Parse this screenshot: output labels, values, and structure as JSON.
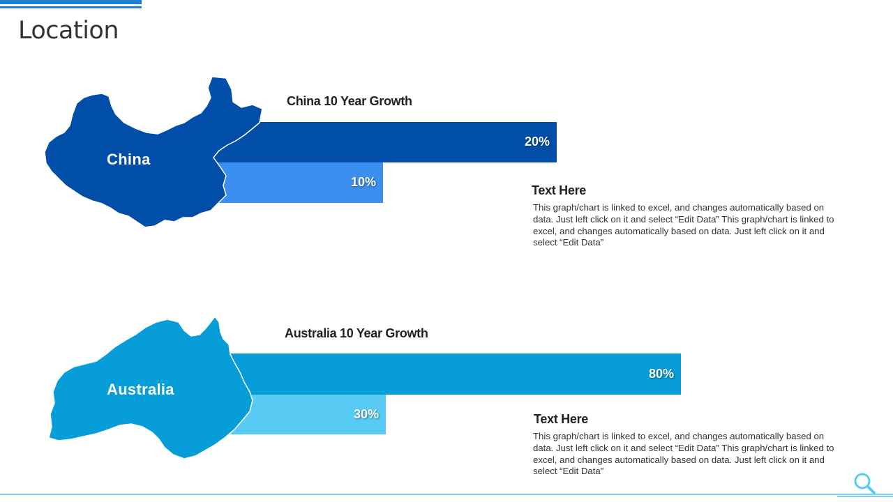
{
  "page": {
    "title": "Location"
  },
  "colors": {
    "accent": "#1e7fd6",
    "china_primary": "#004ea8",
    "china_secondary": "#3b8ff0",
    "australia_primary": "#069dd9",
    "australia_secondary": "#58cbf5",
    "footer_line": "#7fd0ee"
  },
  "chart_data": [
    {
      "type": "bar",
      "orientation": "horizontal",
      "title": "China 10 Year Growth",
      "region_label": "China",
      "values": [
        20,
        10
      ],
      "value_labels": [
        "20%",
        "10%"
      ],
      "xlim": [
        0,
        100
      ],
      "grid": false,
      "legend": "none"
    },
    {
      "type": "bar",
      "orientation": "horizontal",
      "title": "Australia 10 Year Growth",
      "region_label": "Australia",
      "values": [
        80,
        30
      ],
      "value_labels": [
        "80%",
        "30%"
      ],
      "xlim": [
        0,
        100
      ],
      "grid": false,
      "legend": "none"
    }
  ],
  "notes": [
    {
      "title": "Text Here",
      "body": "This graph/chart is linked to excel, and changes automatically based on data. Just left click on it and select “Edit Data” This graph/chart is linked to excel, and changes automatically based on data. Just left click on it and select “Edit Data”"
    },
    {
      "title": "Text Here",
      "body": "This graph/chart is linked to excel, and changes automatically based on data. Just left click on it and select “Edit Data” This graph/chart is linked to excel, and changes automatically based on data. Just left click on it and select “Edit Data”"
    }
  ],
  "icons": {
    "footer": "search-icon"
  }
}
